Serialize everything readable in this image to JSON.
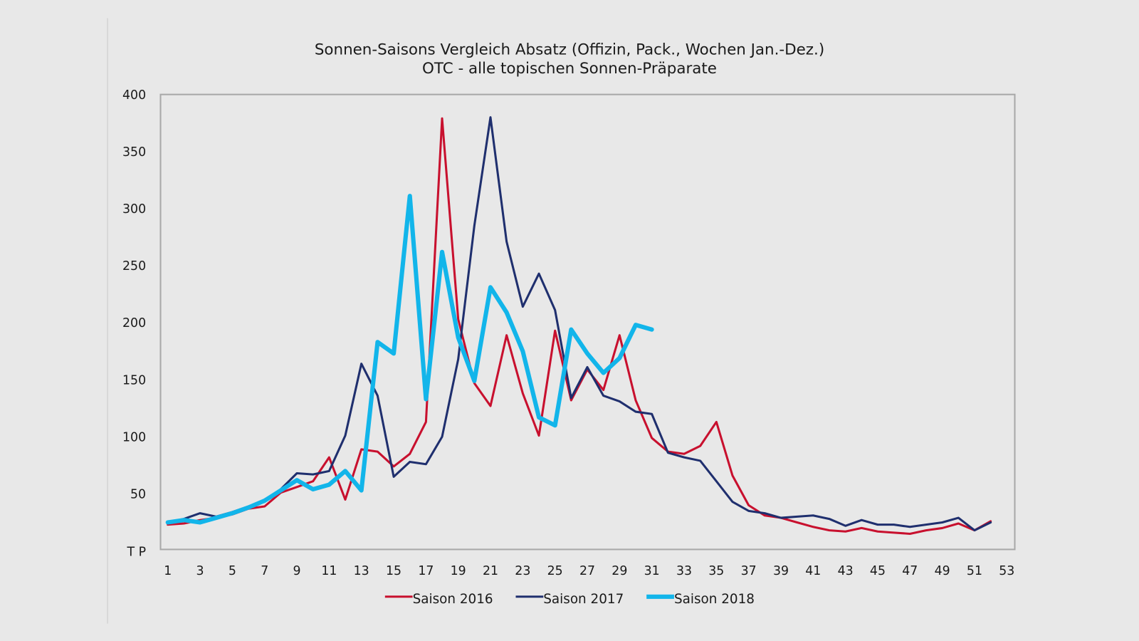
{
  "chart_data": {
    "type": "line",
    "title": "Sonnen-Saisons Vergleich Absatz (Offizin, Pack., Wochen Jan.-Dez.)",
    "subtitle": "OTC - alle topischen Sonnen-Präparate",
    "ylabel": "T P",
    "xlabel": "",
    "ylim": [
      0,
      400
    ],
    "xlim": [
      1,
      53
    ],
    "yticks": [
      400,
      350,
      300,
      250,
      200,
      150,
      100,
      50
    ],
    "y_zero_label": "T P",
    "xticks": [
      1,
      3,
      5,
      7,
      9,
      11,
      13,
      15,
      17,
      19,
      21,
      23,
      25,
      27,
      29,
      31,
      33,
      35,
      37,
      39,
      41,
      43,
      45,
      47,
      49,
      51,
      53
    ],
    "legend_position": "bottom",
    "grid": false,
    "series": [
      {
        "name": "Saison 2016",
        "color": "#c8102e",
        "width": 3,
        "values": [
          23,
          24,
          27,
          29,
          32,
          37,
          39,
          51,
          56,
          61,
          82,
          45,
          89,
          87,
          74,
          85,
          113,
          379,
          203,
          147,
          127,
          189,
          138,
          101,
          193,
          132,
          159,
          141,
          189,
          132,
          99,
          87,
          85,
          92,
          113,
          66,
          40,
          31,
          29,
          25,
          21,
          18,
          17,
          20,
          17,
          16,
          15,
          18,
          20,
          24,
          18,
          26
        ]
      },
      {
        "name": "Saison 2017",
        "color": "#1f2f6e",
        "width": 3,
        "values": [
          25,
          28,
          33,
          30,
          34,
          39,
          43,
          54,
          68,
          67,
          70,
          101,
          164,
          136,
          65,
          78,
          76,
          100,
          168,
          285,
          380,
          271,
          214,
          243,
          211,
          134,
          161,
          136,
          131,
          122,
          120,
          86,
          82,
          79,
          61,
          43,
          35,
          33,
          29,
          30,
          31,
          28,
          22,
          27,
          23,
          23,
          21,
          23,
          25,
          29,
          18,
          25
        ]
      },
      {
        "name": "Saison 2018",
        "color": "#12b5ea",
        "width": 6,
        "values": [
          25,
          27,
          25,
          29,
          33,
          38,
          44,
          53,
          62,
          54,
          58,
          70,
          53,
          183,
          173,
          311,
          133,
          262,
          187,
          149,
          231,
          209,
          175,
          117,
          110,
          194,
          173,
          156,
          169,
          198,
          194
        ]
      }
    ]
  }
}
